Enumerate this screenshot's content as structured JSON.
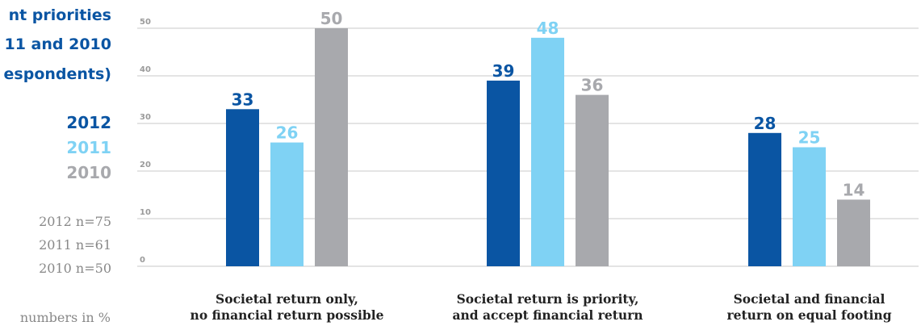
{
  "side_panel": {
    "title_lines": [
      "nt priorities",
      "11 and 2010",
      "espondents)"
    ],
    "legend": [
      {
        "label": "2012",
        "color": "#0a55a3"
      },
      {
        "label": "2011",
        "color": "#7fd2f4"
      },
      {
        "label": "2010",
        "color": "#a8a9ad"
      }
    ],
    "sample_sizes": [
      "2012 n=75",
      "2011 n=61",
      "2010 n=50"
    ],
    "footnote": "numbers in %"
  },
  "chart_data": {
    "type": "bar",
    "categories": [
      [
        "Societal return only,",
        "no financial return possible"
      ],
      [
        "Societal return is priority,",
        "and accept financial return"
      ],
      [
        "Societal and financial",
        "return on equal footing"
      ]
    ],
    "series": [
      {
        "name": "2012",
        "values": [
          33,
          39,
          28
        ],
        "color": "#0a55a3"
      },
      {
        "name": "2011",
        "values": [
          26,
          48,
          25
        ],
        "color": "#7fd2f4"
      },
      {
        "name": "2010",
        "values": [
          50,
          36,
          14
        ],
        "color": "#a8a9ad"
      }
    ],
    "yticks": [
      0,
      10,
      20,
      30,
      40,
      50
    ],
    "ylim": [
      0,
      50
    ],
    "grid": true,
    "data_labels": true
  }
}
